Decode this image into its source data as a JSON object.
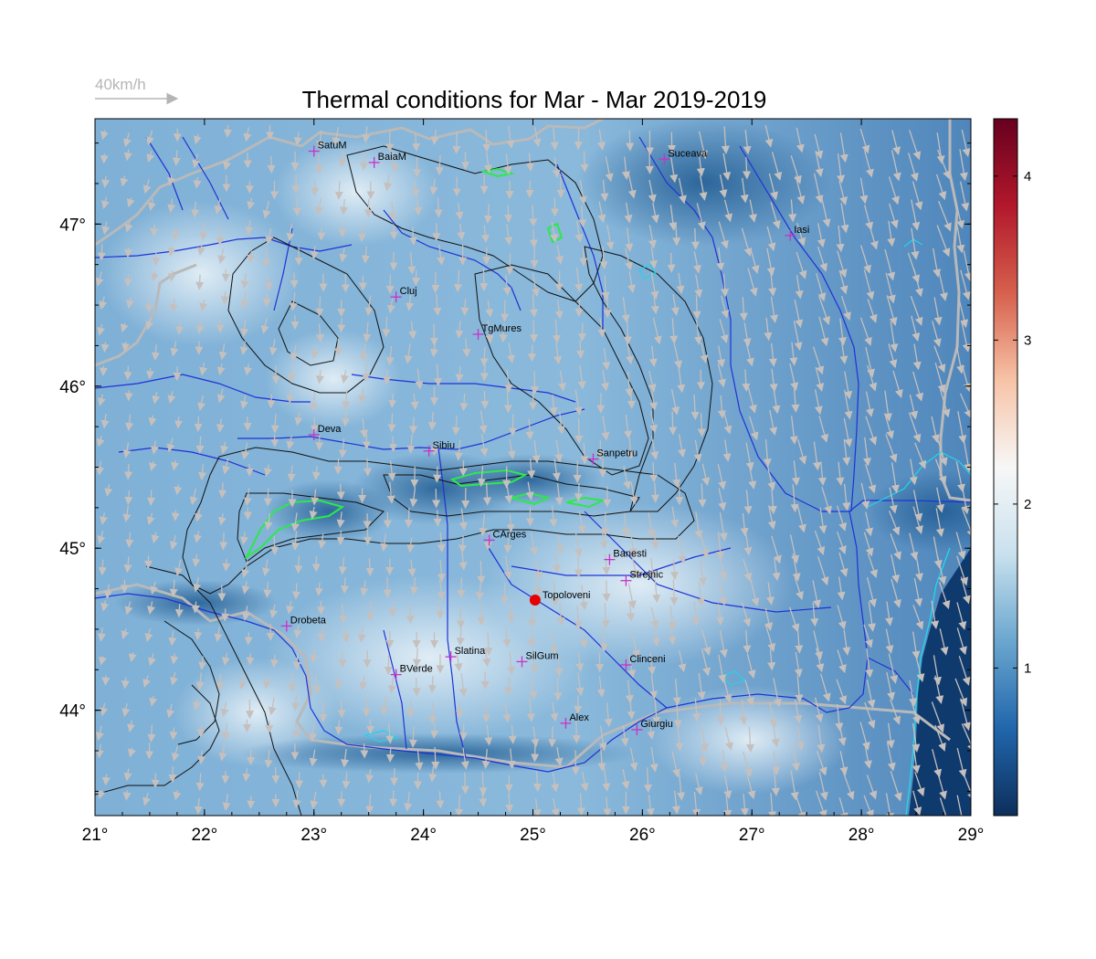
{
  "title": "Thermal conditions for Mar - Mar  2019-2019",
  "wind_scale": {
    "label": "40km/h"
  },
  "map": {
    "lon_range": [
      21,
      29
    ],
    "lat_range": [
      43.35,
      47.65
    ],
    "x_ticks": [
      {
        "value": 21,
        "label": "21°"
      },
      {
        "value": 22,
        "label": "22°"
      },
      {
        "value": 23,
        "label": "23°"
      },
      {
        "value": 24,
        "label": "24°"
      },
      {
        "value": 25,
        "label": "25°"
      },
      {
        "value": 26,
        "label": "26°"
      },
      {
        "value": 27,
        "label": "27°"
      },
      {
        "value": 28,
        "label": "28°"
      },
      {
        "value": 29,
        "label": "29°"
      }
    ],
    "y_ticks": [
      {
        "value": 44,
        "label": "44°"
      },
      {
        "value": 45,
        "label": "45°"
      },
      {
        "value": 46,
        "label": "46°"
      },
      {
        "value": 47,
        "label": "47°"
      }
    ],
    "colors": {
      "field_dark": "#1a4f86",
      "field_mid": "#5b90c2",
      "field_light": "#dbe9f3",
      "rivers": "#1f32d6",
      "contours": "#111111",
      "cities": "#c832c8",
      "arrows": "#c5c0bd",
      "marker": "#e60000"
    }
  },
  "colorbar": {
    "range": [
      0.1,
      4.35
    ],
    "ticks": [
      {
        "value": 1,
        "label": "1"
      },
      {
        "value": 2,
        "label": "2"
      },
      {
        "value": 3,
        "label": "3"
      },
      {
        "value": 4,
        "label": "4"
      }
    ],
    "stops": [
      "#0d2f5c",
      "#2166ac",
      "#6aa6cf",
      "#c9e1ee",
      "#f7f7f7",
      "#f7c3a7",
      "#d6604d",
      "#b2182b",
      "#67001f"
    ]
  },
  "cities": [
    {
      "name": "SatuM",
      "lon": 23.0,
      "lat": 47.45
    },
    {
      "name": "BaiaM",
      "lon": 23.55,
      "lat": 47.38
    },
    {
      "name": "Suceava",
      "lon": 26.2,
      "lat": 47.4
    },
    {
      "name": "Iasi",
      "lon": 27.35,
      "lat": 46.93
    },
    {
      "name": "Cluj",
      "lon": 23.75,
      "lat": 46.55
    },
    {
      "name": "TgMures",
      "lon": 24.5,
      "lat": 46.32
    },
    {
      "name": "Deva",
      "lon": 23.0,
      "lat": 45.7
    },
    {
      "name": "Sibiu",
      "lon": 24.05,
      "lat": 45.6
    },
    {
      "name": "Sanpetru",
      "lon": 25.55,
      "lat": 45.55
    },
    {
      "name": "CArges",
      "lon": 24.6,
      "lat": 45.05
    },
    {
      "name": "Banesti",
      "lon": 25.7,
      "lat": 44.93
    },
    {
      "name": "Strejnic",
      "lon": 25.85,
      "lat": 44.8
    },
    {
      "name": "Drobeta",
      "lon": 22.75,
      "lat": 44.52
    },
    {
      "name": "Slatina",
      "lon": 24.25,
      "lat": 44.33
    },
    {
      "name": "SilGum",
      "lon": 24.9,
      "lat": 44.3
    },
    {
      "name": "Clinceni",
      "lon": 25.85,
      "lat": 44.28
    },
    {
      "name": "BVerde",
      "lon": 23.75,
      "lat": 44.22
    },
    {
      "name": "Alex",
      "lon": 25.3,
      "lat": 43.92
    },
    {
      "name": "Giurgiu",
      "lon": 25.95,
      "lat": 43.88
    }
  ],
  "station": {
    "name": "Topoloveni",
    "lon": 25.02,
    "lat": 44.68
  }
}
